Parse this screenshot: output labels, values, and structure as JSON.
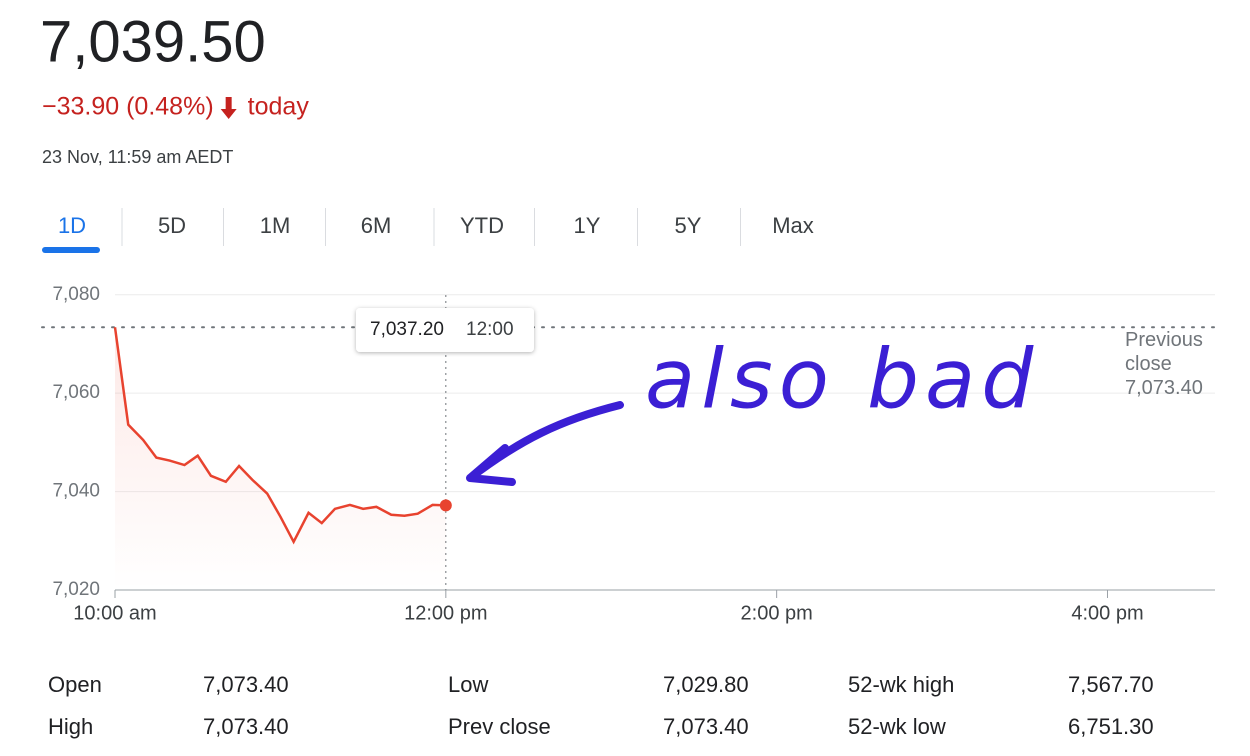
{
  "header": {
    "price": "7,039.50",
    "change": "−33.90 (0.48%)",
    "change_period": "today",
    "timestamp": "23 Nov, 11:59 am AEDT"
  },
  "tabs": [
    "1D",
    "5D",
    "1M",
    "6M",
    "YTD",
    "1Y",
    "5Y",
    "Max"
  ],
  "chart_data": {
    "type": "line",
    "x": [
      10,
      10.08,
      10.17,
      10.25,
      10.33,
      10.42,
      10.5,
      10.58,
      10.67,
      10.75,
      10.83,
      10.92,
      11,
      11.08,
      11.17,
      11.25,
      11.33,
      11.42,
      11.5,
      11.58,
      11.67,
      11.75,
      11.83,
      11.92,
      12
    ],
    "series": [
      {
        "name": "Price",
        "color": "#e8432f",
        "values": [
          7073.4,
          7053.6,
          7050.5,
          7046.9,
          7046.3,
          7045.4,
          7047.3,
          7043.2,
          7042,
          7045.2,
          7042.4,
          7039.6,
          7034.9,
          7029.8,
          7035.7,
          7033.6,
          7036.5,
          7037.3,
          7036.5,
          7036.9,
          7035.3,
          7035.1,
          7035.5,
          7037.3,
          7037.2
        ]
      }
    ],
    "xlim": [
      10,
      16.65
    ],
    "ylim": [
      7020,
      7083
    ],
    "xticks": [
      {
        "value": 10,
        "label": "10:00 am"
      },
      {
        "value": 12,
        "label": "12:00 pm"
      },
      {
        "value": 14,
        "label": "2:00 pm"
      },
      {
        "value": 16,
        "label": "4:00 pm"
      }
    ],
    "yticks": [
      {
        "value": 7020,
        "label": "7,020"
      },
      {
        "value": 7040,
        "label": "7,040"
      },
      {
        "value": 7060,
        "label": "7,060"
      },
      {
        "value": 7080,
        "label": "7,080"
      }
    ],
    "grid": true,
    "previous_close": {
      "value": 7073.4,
      "label": "7,073.40",
      "title": "Previous close"
    },
    "tooltip": {
      "value": 7037.2,
      "label": "7,037.20",
      "time": "12:00"
    },
    "annotation": "also bad"
  },
  "stats": {
    "rows": [
      [
        "Open",
        "7,073.40",
        "Low",
        "7,029.80",
        "52-wk high",
        "7,567.70"
      ],
      [
        "High",
        "7,073.40",
        "Prev close",
        "7,073.40",
        "52-wk low",
        "6,751.30"
      ]
    ]
  }
}
